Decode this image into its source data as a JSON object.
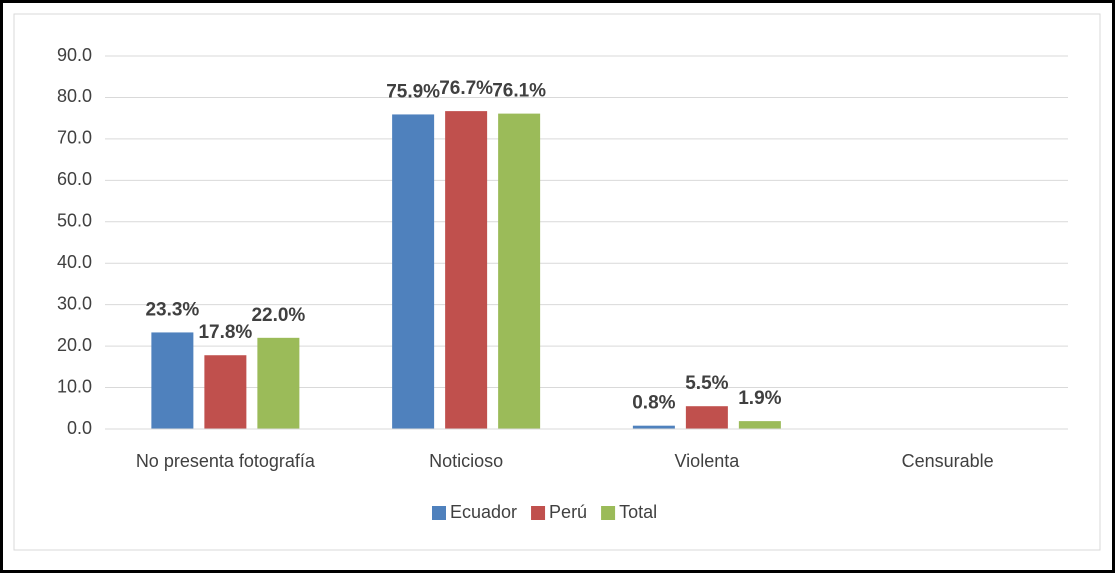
{
  "chart_data": {
    "type": "bar",
    "categories": [
      "No presenta fotografía",
      "Noticioso",
      "Violenta",
      "Censurable"
    ],
    "series": [
      {
        "name": "Ecuador",
        "color": "#4f81bd",
        "values": [
          23.3,
          75.9,
          0.8,
          null
        ],
        "value_labels": [
          "23.3%",
          "75.9%",
          "0.8%",
          null
        ]
      },
      {
        "name": "Perú",
        "color": "#c0504d",
        "values": [
          17.8,
          76.7,
          5.5,
          null
        ],
        "value_labels": [
          "17.8%",
          "76.7%",
          "5.5%",
          null
        ]
      },
      {
        "name": "Total",
        "color": "#9bbb59",
        "values": [
          22.0,
          76.1,
          1.9,
          null
        ],
        "value_labels": [
          "22.0%",
          "76.1%",
          "1.9%",
          null
        ]
      }
    ],
    "ylim": [
      0,
      90
    ],
    "yticks": [
      {
        "value": 0,
        "label": "0.0"
      },
      {
        "value": 10,
        "label": "10.0"
      },
      {
        "value": 20,
        "label": "20.0"
      },
      {
        "value": 30,
        "label": "30.0"
      },
      {
        "value": 40,
        "label": "40.0"
      },
      {
        "value": 50,
        "label": "50.0"
      },
      {
        "value": 60,
        "label": "60.0"
      },
      {
        "value": 70,
        "label": "70.0"
      },
      {
        "value": 80,
        "label": "80.0"
      },
      {
        "value": 90,
        "label": "90.0"
      }
    ],
    "grid": true,
    "legend": "bottom"
  }
}
